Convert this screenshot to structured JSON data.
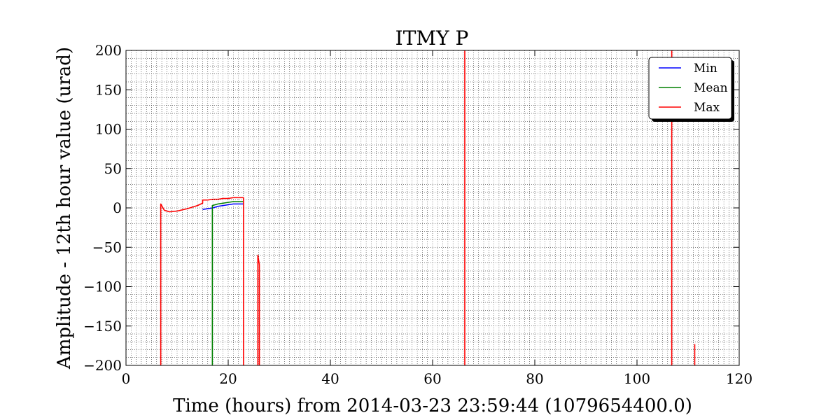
{
  "chart_data": {
    "type": "line",
    "title": "ITMY P",
    "xlabel": "Time (hours) from 2014-03-23 23:59:44 (1079654400.0)",
    "ylabel": "Amplitude - 12th hour value (urad)",
    "xlim": [
      0,
      120
    ],
    "ylim": [
      -200,
      200
    ],
    "xticks": [
      0,
      20,
      40,
      60,
      80,
      100,
      120
    ],
    "yticks": [
      -200,
      -150,
      -100,
      -50,
      0,
      50,
      100,
      150,
      200
    ],
    "xtick_labels": [
      "0",
      "20",
      "40",
      "60",
      "80",
      "100",
      "120"
    ],
    "ytick_labels": [
      "−200",
      "−150",
      "−100",
      "−50",
      "0",
      "50",
      "100",
      "150",
      "200"
    ],
    "grid": true,
    "legend_position": "top-right",
    "series": [
      {
        "name": "Min",
        "color": "#0000ff",
        "points": [
          [
            15.0,
            -2
          ],
          [
            16.0,
            -1
          ],
          [
            17.0,
            0
          ],
          [
            18.0,
            2
          ],
          [
            19.0,
            3
          ],
          [
            20.0,
            4
          ],
          [
            21.0,
            5
          ],
          [
            22.0,
            5
          ],
          [
            23.0,
            5
          ]
        ]
      },
      {
        "name": "Mean",
        "color": "#008000",
        "points": [
          [
            16.9,
            -200
          ],
          [
            16.9,
            3
          ],
          [
            18.0,
            5
          ],
          [
            19.0,
            6
          ],
          [
            20.0,
            7
          ],
          [
            21.0,
            8
          ],
          [
            22.0,
            8
          ],
          [
            23.0,
            8
          ]
        ]
      },
      {
        "name": "Max",
        "color": "#ff0000",
        "points": [
          [
            6.8,
            -200
          ],
          [
            6.8,
            5
          ],
          [
            7.5,
            -3
          ],
          [
            8.5,
            -5
          ],
          [
            10.0,
            -4
          ],
          [
            12.0,
            -1
          ],
          [
            14.0,
            3
          ],
          [
            15.0,
            6
          ],
          [
            15.0,
            10
          ],
          [
            16.0,
            10
          ],
          [
            17.0,
            11
          ],
          [
            18.0,
            11
          ],
          [
            19.0,
            12
          ],
          [
            20.0,
            12
          ],
          [
            21.0,
            13
          ],
          [
            22.0,
            13
          ],
          [
            23.0,
            13
          ],
          [
            23.0,
            -200
          ],
          null,
          [
            25.8,
            -200
          ],
          [
            25.8,
            -60
          ],
          [
            26.1,
            -72
          ],
          [
            26.1,
            -200
          ],
          null,
          [
            66.3,
            -200
          ],
          [
            66.3,
            200
          ],
          null,
          [
            106.8,
            -200
          ],
          [
            106.8,
            200
          ],
          null,
          [
            111.3,
            -200
          ],
          [
            111.3,
            -173
          ]
        ]
      }
    ]
  }
}
